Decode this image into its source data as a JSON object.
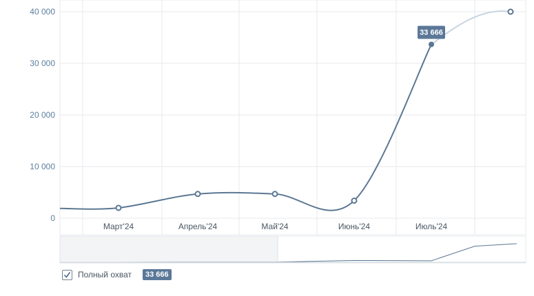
{
  "chart_data": {
    "type": "line",
    "x": [
      "",
      "Март'24",
      "Апрель'24",
      "Май'24",
      "Июнь'24",
      "Июль'24",
      ""
    ],
    "series": [
      {
        "name": "Полный охват",
        "values": [
          1900,
          2000,
          4700,
          4700,
          3400,
          33666,
          40000
        ]
      }
    ],
    "tick_labels_x": [
      "Март'24",
      "Апрель'24",
      "Май'24",
      "Июнь'24",
      "Июль'24"
    ],
    "tick_labels_y": [
      "0",
      "10 000",
      "20 000",
      "30 000",
      "40 000"
    ],
    "ylim": [
      0,
      40000
    ],
    "tooltip": {
      "label": "33 666",
      "index": 5
    },
    "grid": true,
    "navigator": true,
    "colors": {
      "line": "#5b7793",
      "line_future": "#c7d4e0",
      "tooltip": "#5b7898",
      "grid": "#e7eaee",
      "axis_text": "#5b7f9f"
    }
  },
  "legend": {
    "label": "Полный охват",
    "value": "33 666",
    "checked": true
  }
}
